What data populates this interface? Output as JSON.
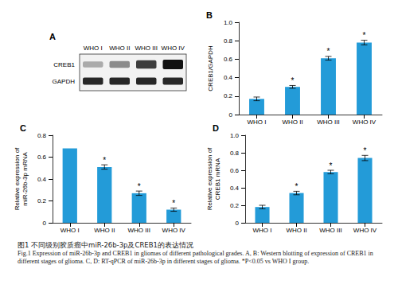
{
  "blot": {
    "panel": "A",
    "lanes": [
      "WHO I",
      "WHO II",
      "WHO III",
      "WHO IV"
    ],
    "rows": [
      "CREB1",
      "GAPDH"
    ]
  },
  "chart_data": [
    {
      "type": "bar",
      "title": "B",
      "categories": [
        "WHO I",
        "WHO II",
        "WHO III",
        "WHO IV"
      ],
      "values": [
        0.17,
        0.3,
        0.61,
        0.78
      ],
      "errors": [
        0.02,
        0.015,
        0.02,
        0.025
      ],
      "annotations": [
        null,
        "*",
        "*",
        "*"
      ],
      "ylabel": "CREB1/GAPDH",
      "ylim": [
        0,
        1
      ],
      "yticks": [
        0,
        0.2,
        0.4,
        0.6,
        0.8,
        {
          "value": 1,
          "label": "1.0"
        }
      ],
      "color": "#239bd8",
      "grid": false
    },
    {
      "type": "bar",
      "title": "C",
      "categories": [
        "WHO I",
        "WHO II",
        "WHO III",
        "WHO IV"
      ],
      "values": [
        0.68,
        0.51,
        0.27,
        0.12
      ],
      "errors": [
        0,
        0.02,
        0.02,
        0.015
      ],
      "annotations": [
        null,
        "*",
        "*",
        "*"
      ],
      "ylabel": "Relative expression of\nmiR-26b-3p mRNA",
      "ylim": [
        0,
        0.8
      ],
      "yticks": [
        0,
        0.2,
        0.4,
        0.6,
        0.8
      ],
      "color": "#239bd8",
      "grid": false
    },
    {
      "type": "bar",
      "title": "D",
      "categories": [
        "WHO I",
        "WHO II",
        "WHO III",
        "WHO IV"
      ],
      "values": [
        0.18,
        0.34,
        0.58,
        0.74
      ],
      "errors": [
        0.02,
        0.02,
        0.02,
        0.03
      ],
      "annotations": [
        null,
        "*",
        "*",
        "*"
      ],
      "ylabel": "Relative expression of\nCREB1 mRNA",
      "ylim": [
        0,
        1
      ],
      "yticks": [
        0,
        0.2,
        0.4,
        0.6,
        0.8,
        {
          "value": 1,
          "label": "1.0"
        }
      ],
      "color": "#239bd8",
      "grid": false
    }
  ],
  "caption": {
    "chinese": "图1 不同级别胶质瘤中miR-26b-3p及CREB1的表达情况",
    "english": "Fig.1 Expression of miR-26b-3p and CREB1 in gliomas of different pathological grades. A, B: Western blotting of expression of CREB1 in different stages of glioma. C, D: RT-qPCR of miR-26b-3p in different stages of glioma. *P<0.05 vs WHO I group."
  }
}
